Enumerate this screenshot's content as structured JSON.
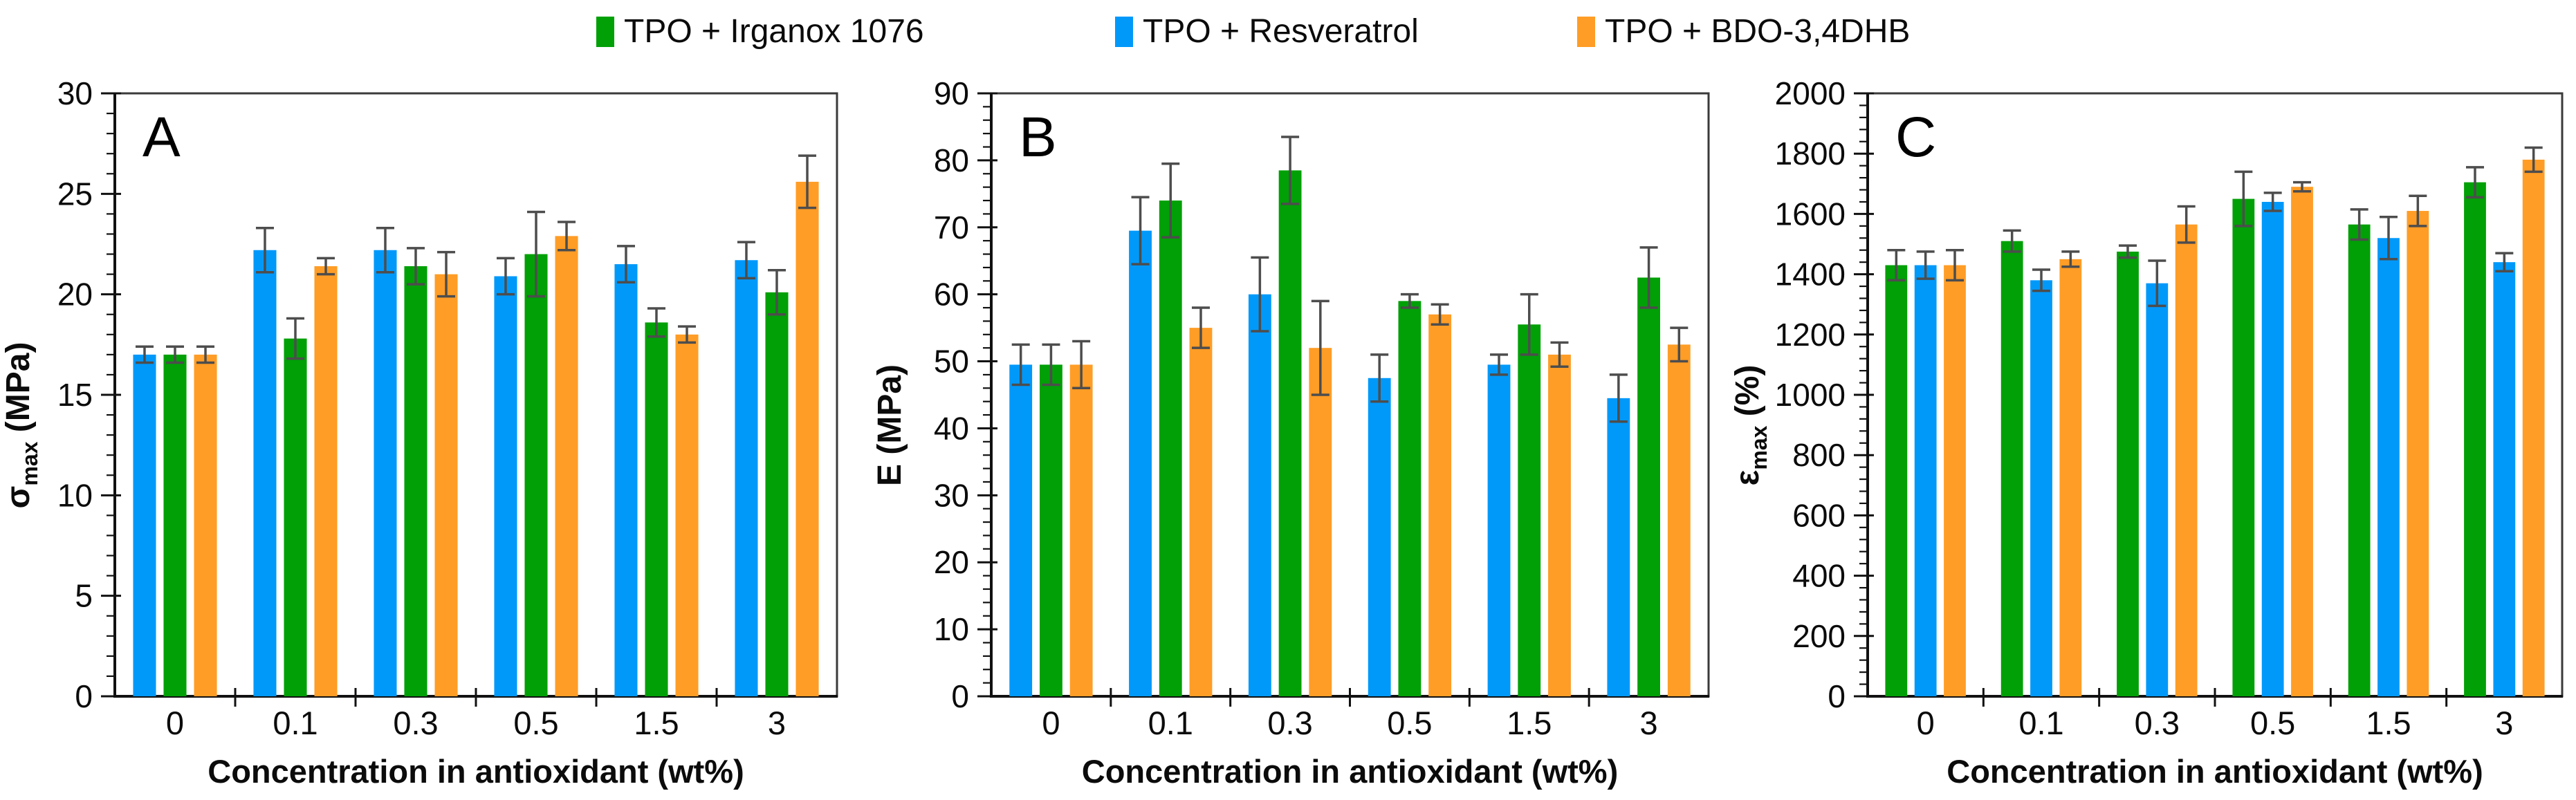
{
  "page": {
    "background": "#ffffff"
  },
  "legend": {
    "items": [
      {
        "label": "TPO + Irganox 1076",
        "color": "#00A006"
      },
      {
        "label": "TPO + Resveratrol",
        "color": "#0099FA"
      },
      {
        "label": "TPO + BDO-3,4DHB",
        "color": "#FF9D26"
      }
    ]
  },
  "colors": {
    "green": "#00A006",
    "blue": "#0099FA",
    "orange": "#FF9D26",
    "error_bar": "#4D4D4D",
    "axis": "#111111"
  },
  "chart_data": [
    {
      "type": "bar",
      "panel_label": "A",
      "ylabel": {
        "symbol": "σ",
        "subscript": "max",
        "unit": " (MPa)"
      },
      "xlabel": "Concentration in antioxidant (wt%)",
      "ylim": [
        0,
        30
      ],
      "ytick_major": 5,
      "ytick_minor": 1,
      "grid": false,
      "legend_position": "top-shared",
      "categories": [
        "0",
        "0.1",
        "0.3",
        "0.5",
        "1.5",
        "3"
      ],
      "series": [
        {
          "name": "TPO + Resveratrol",
          "color": "#0099FA",
          "values": [
            17.0,
            22.2,
            22.2,
            20.9,
            21.5,
            21.7
          ],
          "errors": [
            0.4,
            1.1,
            1.1,
            0.9,
            0.9,
            0.9
          ]
        },
        {
          "name": "TPO + Irganox 1076",
          "color": "#00A006",
          "values": [
            17.0,
            17.8,
            21.4,
            22.0,
            18.6,
            20.1
          ],
          "errors": [
            0.4,
            1.0,
            0.9,
            2.1,
            0.7,
            1.1
          ]
        },
        {
          "name": "TPO + BDO-3,4DHB",
          "color": "#FF9D26",
          "values": [
            17.0,
            21.4,
            21.0,
            22.9,
            18.0,
            25.6
          ],
          "errors": [
            0.4,
            0.4,
            1.1,
            0.7,
            0.4,
            1.3
          ]
        }
      ]
    },
    {
      "type": "bar",
      "panel_label": "B",
      "ylabel": {
        "symbol": "E",
        "subscript": "",
        "unit": " (MPa)"
      },
      "xlabel": "Concentration in antioxidant (wt%)",
      "ylim": [
        0,
        90
      ],
      "ytick_major": 10,
      "ytick_minor": 2,
      "grid": false,
      "legend_position": "top-shared",
      "categories": [
        "0",
        "0.1",
        "0.3",
        "0.5",
        "1.5",
        "3"
      ],
      "series": [
        {
          "name": "TPO + Resveratrol",
          "color": "#0099FA",
          "values": [
            49.5,
            69.5,
            60.0,
            47.5,
            49.5,
            44.5
          ],
          "errors": [
            3.0,
            5.0,
            5.5,
            3.5,
            1.5,
            3.5
          ]
        },
        {
          "name": "TPO + Irganox 1076",
          "color": "#00A006",
          "values": [
            49.5,
            74.0,
            78.5,
            59.0,
            55.5,
            62.5
          ],
          "errors": [
            3.0,
            5.5,
            5.0,
            1.0,
            4.5,
            4.5
          ]
        },
        {
          "name": "TPO + BDO-3,4DHB",
          "color": "#FF9D26",
          "values": [
            49.5,
            55.0,
            52.0,
            57.0,
            51.0,
            52.5
          ],
          "errors": [
            3.5,
            3.0,
            7.0,
            1.5,
            1.8,
            2.5
          ]
        }
      ]
    },
    {
      "type": "bar",
      "panel_label": "C",
      "ylabel": {
        "symbol": "ε",
        "subscript": "max",
        "unit": " (%)"
      },
      "xlabel": "Concentration in antioxidant (wt%)",
      "ylim": [
        0,
        2000
      ],
      "ytick_major": 200,
      "ytick_minor": 40,
      "grid": false,
      "legend_position": "top-shared",
      "categories": [
        "0",
        "0.1",
        "0.3",
        "0.5",
        "1.5",
        "3"
      ],
      "series": [
        {
          "name": "TPO + Irganox 1076",
          "color": "#00A006",
          "values": [
            1430,
            1510,
            1475,
            1650,
            1565,
            1705
          ],
          "errors": [
            50,
            35,
            20,
            90,
            50,
            50
          ]
        },
        {
          "name": "TPO + Resveratrol",
          "color": "#0099FA",
          "values": [
            1430,
            1380,
            1370,
            1640,
            1520,
            1440
          ],
          "errors": [
            45,
            35,
            75,
            30,
            70,
            30
          ]
        },
        {
          "name": "TPO + BDO-3,4DHB",
          "color": "#FF9D26",
          "values": [
            1430,
            1450,
            1565,
            1690,
            1610,
            1780
          ],
          "errors": [
            50,
            25,
            60,
            15,
            50,
            40
          ]
        }
      ]
    }
  ]
}
